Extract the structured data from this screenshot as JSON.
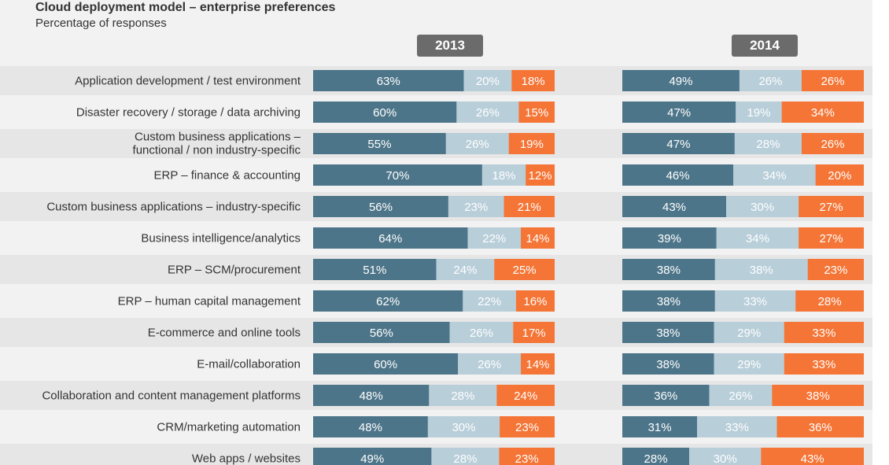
{
  "header": {
    "title": "Cloud deployment model – enterprise preferences",
    "subtitle": "Percentage of responses"
  },
  "colors": {
    "dark": "#4d7589",
    "light": "#b8ced9",
    "orange": "#f47536",
    "band": "#e6e6e6",
    "badge": "#6b6b6b"
  },
  "chart_data": {
    "type": "bar",
    "stacked": true,
    "orientation": "horizontal",
    "title": "Cloud deployment model – enterprise preferences",
    "subtitle": "Percentage of responses",
    "panels": [
      "2013",
      "2014"
    ],
    "categories": [
      "Application development / test environment",
      "Disaster recovery / storage / data archiving",
      "Custom business applications – functional / non industry-specific",
      "ERP – finance & accounting",
      "Custom business applications – industry-specific",
      "Business intelligence/analytics",
      "ERP – SCM/procurement",
      "ERP – human capital management",
      "E-commerce and online tools",
      "E-mail/collaboration",
      "Collaboration and content management platforms",
      "CRM/marketing automation",
      "Web apps / websites"
    ],
    "category_lines": [
      [
        "Application development / test environment"
      ],
      [
        "Disaster recovery / storage / data archiving"
      ],
      [
        "Custom business applications –",
        "functional / non industry-specific"
      ],
      [
        "ERP – finance & accounting"
      ],
      [
        "Custom business applications – industry-specific"
      ],
      [
        "Business intelligence/analytics"
      ],
      [
        "ERP – SCM/procurement"
      ],
      [
        "ERP – human capital management"
      ],
      [
        "E-commerce and online tools"
      ],
      [
        "E-mail/collaboration"
      ],
      [
        "Collaboration and content management platforms"
      ],
      [
        "CRM/marketing automation"
      ],
      [
        "Web apps / websites"
      ]
    ],
    "series": [
      {
        "key": "dark",
        "values_2013": [
          63,
          60,
          55,
          70,
          56,
          64,
          51,
          62,
          56,
          60,
          48,
          48,
          49
        ],
        "values_2014": [
          49,
          47,
          47,
          46,
          43,
          39,
          38,
          38,
          38,
          38,
          36,
          31,
          28
        ]
      },
      {
        "key": "light",
        "values_2013": [
          20,
          26,
          26,
          18,
          23,
          22,
          24,
          22,
          26,
          26,
          28,
          30,
          28
        ],
        "values_2014": [
          26,
          19,
          28,
          34,
          30,
          34,
          38,
          33,
          29,
          29,
          26,
          33,
          30
        ]
      },
      {
        "key": "orange",
        "values_2013": [
          18,
          15,
          19,
          12,
          21,
          14,
          25,
          16,
          17,
          14,
          24,
          23,
          23
        ],
        "values_2014": [
          26,
          34,
          26,
          20,
          27,
          27,
          23,
          28,
          33,
          33,
          38,
          36,
          43
        ]
      }
    ],
    "unit": "%"
  }
}
